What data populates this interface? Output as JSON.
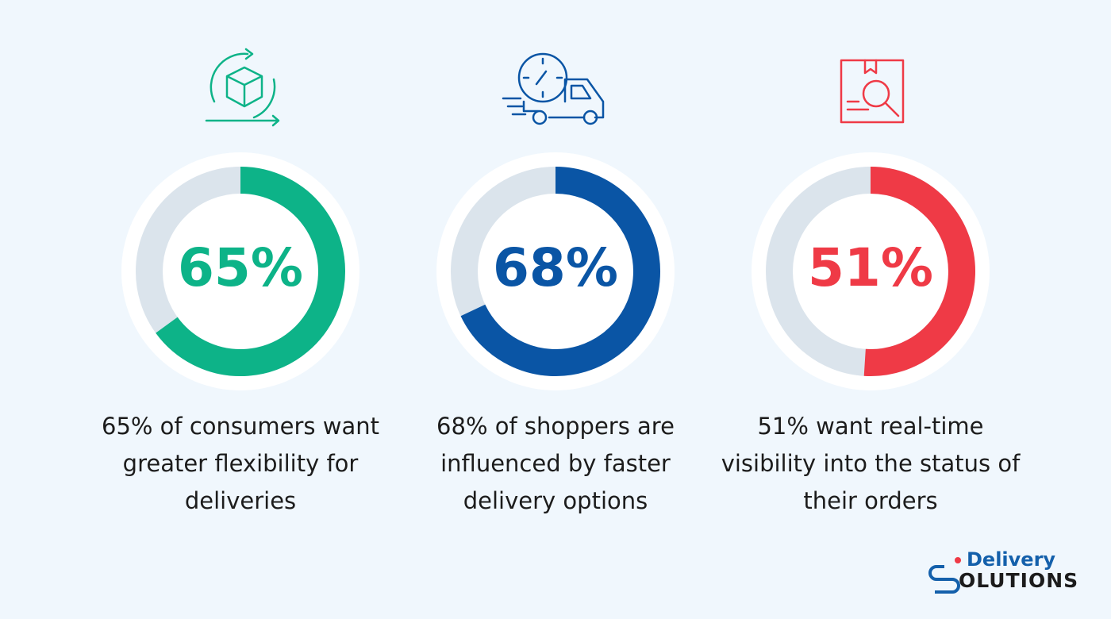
{
  "chart_data": [
    {
      "type": "donut",
      "values": [
        65
      ],
      "value_labels": [
        "65%"
      ],
      "color": "#0db388",
      "caption": "65% of consumers want greater flexibility for deliveries"
    },
    {
      "type": "donut",
      "values": [
        68
      ],
      "value_labels": [
        "68%"
      ],
      "color": "#0a55a5",
      "caption": "68% of shoppers are influenced by faster delivery options"
    },
    {
      "type": "donut",
      "values": [
        51
      ],
      "value_labels": [
        "51%"
      ],
      "color": "#ef3a46",
      "caption": "51% want real-time visibility into the status of their orders"
    }
  ],
  "logo": {
    "top": "Delivery",
    "bottom": "OLUTIONS"
  }
}
